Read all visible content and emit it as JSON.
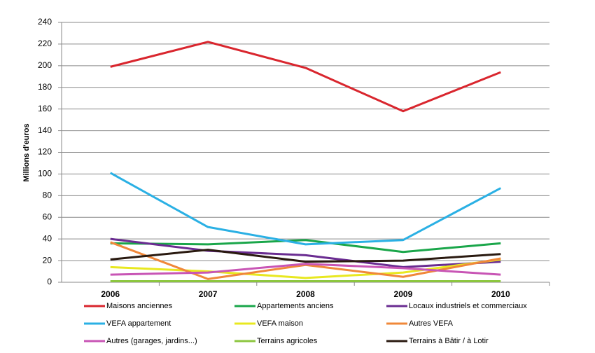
{
  "chart_data": {
    "type": "line",
    "y_label": "Millions d'euros",
    "categories": [
      "2006",
      "2007",
      "2008",
      "2009",
      "2010"
    ],
    "series": [
      {
        "name": "Maisons anciennes",
        "color": "#d9262e",
        "values": [
          199,
          222,
          198,
          158,
          194
        ]
      },
      {
        "name": "Appartements anciens",
        "color": "#1aa64a",
        "values": [
          36,
          35,
          39,
          28,
          36
        ]
      },
      {
        "name": "Locaux industriels et commerciaux",
        "color": "#6a2c91",
        "values": [
          40,
          29,
          25,
          14,
          19
        ]
      },
      {
        "name": "VEFA appartement",
        "color": "#2ab0e4",
        "values": [
          101,
          51,
          35,
          39,
          87
        ]
      },
      {
        "name": "VEFA maison",
        "color": "#e8e820",
        "values": [
          14,
          10,
          4,
          9,
          21
        ]
      },
      {
        "name": "Autres VEFA",
        "color": "#f0883a",
        "values": [
          37,
          3,
          16,
          5,
          22
        ]
      },
      {
        "name": "Autres (garages, jardins...)",
        "color": "#c855b5",
        "values": [
          7,
          9,
          17,
          13,
          7
        ]
      },
      {
        "name": "Terrains agricoles",
        "color": "#8cc63f",
        "values": [
          1,
          1,
          1,
          1,
          1
        ]
      },
      {
        "name": "Terrains à Bâtir / à Lotir",
        "color": "#2a1a10",
        "values": [
          21,
          30,
          19,
          20,
          26
        ]
      }
    ],
    "ylim": [
      0,
      240
    ],
    "yticks": [
      0,
      20,
      40,
      60,
      80,
      100,
      120,
      140,
      160,
      180,
      200,
      220,
      240
    ],
    "grid": true,
    "legend": "bottom"
  }
}
